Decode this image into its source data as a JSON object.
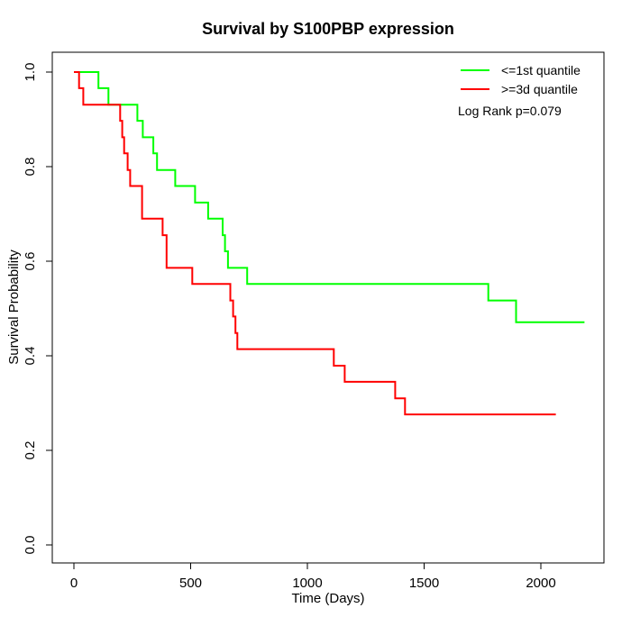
{
  "chart_data": {
    "type": "line",
    "subtype": "kaplan-meier-step",
    "title": "Survival by S100PBP expression",
    "xlabel": "Time (Days)",
    "ylabel": "Survival Probability",
    "xlim": [
      0,
      2187
    ],
    "ylim": [
      0.0,
      1.0
    ],
    "grid": false,
    "legend_position": "top-right",
    "annotation": "Log Rank p=0.079",
    "x_ticks": [
      0,
      500,
      1000,
      1500,
      2000
    ],
    "x_tick_labels": [
      "0",
      "500",
      "1000",
      "1500",
      "2000"
    ],
    "y_ticks": [
      0.0,
      0.2,
      0.4,
      0.6,
      0.8,
      1.0
    ],
    "y_tick_labels": [
      "0.0",
      "0.2",
      "0.4",
      "0.6",
      "0.8",
      "1.0"
    ],
    "series": [
      {
        "name": "<=1st quantile",
        "color": "#00ff00",
        "end_time": 2187,
        "points": [
          [
            0,
            1.0
          ],
          [
            105,
            0.966
          ],
          [
            148,
            0.931
          ],
          [
            272,
            0.897
          ],
          [
            295,
            0.862
          ],
          [
            340,
            0.828
          ],
          [
            356,
            0.793
          ],
          [
            434,
            0.759
          ],
          [
            519,
            0.724
          ],
          [
            575,
            0.69
          ],
          [
            637,
            0.655
          ],
          [
            647,
            0.621
          ],
          [
            660,
            0.586
          ],
          [
            742,
            0.552
          ],
          [
            1775,
            0.517
          ],
          [
            1894,
            0.471
          ]
        ]
      },
      {
        "name": ">=3d quantile",
        "color": "#ff0000",
        "end_time": 2064,
        "points": [
          [
            0,
            1.0
          ],
          [
            22,
            0.966
          ],
          [
            40,
            0.931
          ],
          [
            198,
            0.897
          ],
          [
            207,
            0.862
          ],
          [
            215,
            0.828
          ],
          [
            230,
            0.793
          ],
          [
            241,
            0.759
          ],
          [
            292,
            0.69
          ],
          [
            380,
            0.655
          ],
          [
            397,
            0.586
          ],
          [
            507,
            0.552
          ],
          [
            670,
            0.517
          ],
          [
            682,
            0.483
          ],
          [
            692,
            0.448
          ],
          [
            700,
            0.414
          ],
          [
            1113,
            0.379
          ],
          [
            1160,
            0.345
          ],
          [
            1376,
            0.31
          ],
          [
            1418,
            0.276
          ]
        ]
      }
    ]
  }
}
